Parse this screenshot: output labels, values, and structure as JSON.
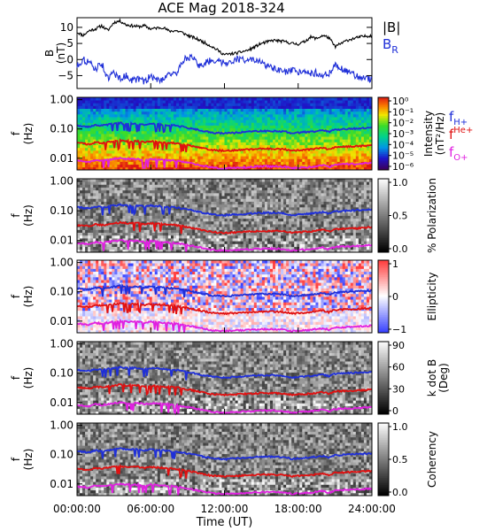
{
  "title": "ACE Mag 2018-324",
  "colors": {
    "B_total": "#000000",
    "B_R": "#1f2fd8",
    "f_H": "#1f2fd8",
    "f_He": "#e01010",
    "f_O": "#e020e0"
  },
  "chart_data": [
    {
      "type": "line",
      "name": "magnetic-field",
      "ylabel_lines": [
        "B",
        "(nT)"
      ],
      "ylim": [
        -9,
        13
      ],
      "yticks": [
        -5,
        0,
        5,
        10
      ],
      "xlim": [
        0,
        24
      ],
      "legend": [
        {
          "label": "|B|",
          "color": "#000000"
        },
        {
          "label": "B",
          "sub": "R",
          "color": "#1f2fd8"
        }
      ],
      "series": [
        {
          "name": "|B|",
          "x": [
            0,
            0.5,
            1,
            1.5,
            2,
            2.5,
            3,
            3.5,
            4,
            4.5,
            5,
            5.5,
            6,
            6.5,
            7,
            7.5,
            8,
            8.5,
            9,
            9.5,
            10,
            11,
            12,
            13,
            14,
            15,
            16,
            17,
            17.5,
            18,
            18.5,
            19,
            19.5,
            20,
            20.5,
            21,
            22,
            23,
            24
          ],
          "values": [
            8.5,
            7.5,
            9,
            9.5,
            10.5,
            9,
            11.5,
            12,
            10.8,
            10.5,
            10.2,
            10.5,
            9.5,
            9.8,
            10,
            8.8,
            9,
            8.5,
            7.5,
            6.8,
            6,
            4,
            1.5,
            2,
            3,
            5,
            6,
            5.5,
            5,
            4.8,
            5.5,
            7,
            6.5,
            7.5,
            6.8,
            4,
            6,
            7,
            7.5
          ]
        },
        {
          "name": "B_R",
          "x": [
            0,
            0.5,
            1,
            1.5,
            2,
            2.5,
            3,
            3.5,
            4,
            4.5,
            5,
            5.5,
            6,
            6.5,
            7,
            7.5,
            8,
            8.5,
            9,
            9.5,
            10,
            11,
            12,
            13,
            14,
            15,
            16,
            17,
            17.5,
            18,
            18.5,
            19,
            19.5,
            20,
            20.5,
            21,
            22,
            23,
            24
          ],
          "values": [
            -2,
            0,
            -1,
            -3,
            -1,
            -6,
            -4,
            -6,
            -5,
            -6.5,
            -6,
            -7,
            -5,
            -6.5,
            -6,
            -4,
            -5,
            -1,
            1,
            0,
            -2,
            0,
            -1,
            0,
            0,
            -1,
            -3,
            -4,
            -3.5,
            -4,
            -3,
            -4.5,
            -4,
            -5,
            -4.5,
            -1.5,
            -4,
            -5.5,
            -6
          ]
        }
      ]
    },
    {
      "type": "heatmap",
      "name": "intensity",
      "ylabel_lines": [
        "f",
        "(Hz)"
      ],
      "yscale": "log",
      "ylim": [
        0.004,
        1.2
      ],
      "yticks": [
        "1.00",
        "0.10",
        "0.01"
      ],
      "colorbar": {
        "label_lines": [
          "Intensity",
          "(nT²/Hz)"
        ],
        "scale": "rainbow",
        "ticks": [
          "10⁰",
          "10⁻¹",
          "10⁻²",
          "10⁻³",
          "10⁻⁴",
          "10⁻⁵",
          "10⁻⁶"
        ]
      },
      "legend": [
        {
          "label": "f",
          "sub": "H+",
          "color": "#1f2fd8"
        },
        {
          "label": "f",
          "sup": "He+",
          "color": "#e01010"
        },
        {
          "label": "f",
          "sub": "O+",
          "color": "#e020e0"
        }
      ]
    },
    {
      "type": "heatmap",
      "name": "polarization",
      "ylabel_lines": [
        "f",
        "(Hz)"
      ],
      "yscale": "log",
      "ylim": [
        0.004,
        1.2
      ],
      "yticks": [
        "1.00",
        "0.10",
        "0.01"
      ],
      "colorbar": {
        "label_lines": [
          "% Polarization"
        ],
        "scale": "gray",
        "ticks": [
          "1.0",
          "0.5",
          "0.0"
        ]
      }
    },
    {
      "type": "heatmap",
      "name": "ellipticity",
      "ylabel_lines": [
        "f",
        "(Hz)"
      ],
      "yscale": "log",
      "ylim": [
        0.004,
        1.2
      ],
      "yticks": [
        "1.00",
        "0.10",
        "0.01"
      ],
      "colorbar": {
        "label_lines": [
          "Ellipticity"
        ],
        "scale": "bwr",
        "ticks": [
          "1",
          "0",
          "−1"
        ]
      }
    },
    {
      "type": "heatmap",
      "name": "k-dot-b",
      "ylabel_lines": [
        "f",
        "(Hz)"
      ],
      "yscale": "log",
      "ylim": [
        0.004,
        1.2
      ],
      "yticks": [
        "1.00",
        "0.10",
        "0.01"
      ],
      "colorbar": {
        "label_lines": [
          "k dot B",
          "(Deg)"
        ],
        "scale": "gray",
        "ticks": [
          "90",
          "60",
          "30",
          "0"
        ]
      }
    },
    {
      "type": "heatmap",
      "name": "coherency",
      "ylabel_lines": [
        "f",
        "(Hz)"
      ],
      "yscale": "log",
      "ylim": [
        0.004,
        1.2
      ],
      "yticks": [
        "1.00",
        "0.10",
        "0.01"
      ],
      "colorbar": {
        "label_lines": [
          "Coherency"
        ],
        "scale": "gray",
        "ticks": [
          "1.0",
          "0.5",
          "0.0"
        ]
      }
    }
  ],
  "gyrofrequency_lines": {
    "x": [
      0,
      1,
      1.5,
      2,
      3,
      3.5,
      4,
      5,
      5.5,
      6,
      7,
      8,
      9,
      10,
      11,
      12,
      13,
      14,
      15,
      16,
      17,
      17.5,
      18,
      19,
      20,
      20.5,
      21,
      22,
      23,
      24
    ],
    "f_H+": [
      0.13,
      0.12,
      0.14,
      0.13,
      0.15,
      0.16,
      0.15,
      0.15,
      0.14,
      0.15,
      0.14,
      0.13,
      0.11,
      0.09,
      0.075,
      0.07,
      0.075,
      0.08,
      0.085,
      0.085,
      0.08,
      0.07,
      0.075,
      0.08,
      0.09,
      0.08,
      0.095,
      0.1,
      0.105,
      0.11
    ],
    "f_He+": [
      0.033,
      0.03,
      0.035,
      0.033,
      0.038,
      0.04,
      0.038,
      0.038,
      0.035,
      0.038,
      0.035,
      0.033,
      0.028,
      0.023,
      0.019,
      0.018,
      0.019,
      0.02,
      0.021,
      0.021,
      0.02,
      0.018,
      0.019,
      0.02,
      0.023,
      0.02,
      0.024,
      0.025,
      0.026,
      0.028
    ],
    "f_O+": [
      0.0082,
      0.0075,
      0.0088,
      0.0082,
      0.0095,
      0.01,
      0.0095,
      0.0095,
      0.0088,
      0.0095,
      0.0088,
      0.0082,
      0.007,
      0.0058,
      0.0048,
      0.0045,
      0.0048,
      0.005,
      0.0053,
      0.0053,
      0.005,
      0.0045,
      0.0048,
      0.005,
      0.0058,
      0.005,
      0.006,
      0.0063,
      0.0065,
      0.007
    ]
  },
  "x_axis": {
    "label": "Time (UT)",
    "ticks": [
      {
        "value": 0,
        "label": "00:00:00"
      },
      {
        "value": 6,
        "label": "06:00:00"
      },
      {
        "value": 12,
        "label": "12:00:00"
      },
      {
        "value": 18,
        "label": "18:00:00"
      },
      {
        "value": 24,
        "label": "24:00:00"
      }
    ]
  }
}
